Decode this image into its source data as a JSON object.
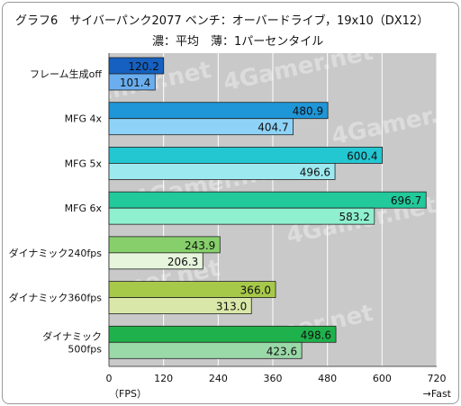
{
  "chart_data": {
    "type": "bar",
    "orientation": "horizontal",
    "title": "グラフ6　サイバーパンク2077 ベンチ：オーバードライブ，19x10（DX12）",
    "subtitle": "濃：平均　薄：1パーセンタイル",
    "xlabel": "（FPS）",
    "direction_label": "→Fast",
    "xlim": [
      0,
      720
    ],
    "xticks": [
      "0",
      "120",
      "240",
      "360",
      "480",
      "600",
      "720"
    ],
    "grid": true,
    "watermark": "4Gamer.net",
    "categories": [
      {
        "label": [
          "フレーム生成off"
        ],
        "average": 120.2,
        "average_label": "120.2",
        "percentile1": 101.4,
        "percentile1_label": "101.4",
        "color_dark": "#1560c0",
        "color_light": "#6aaef0"
      },
      {
        "label": [
          "MFG 4x"
        ],
        "average": 480.9,
        "average_label": "480.9",
        "percentile1": 404.7,
        "percentile1_label": "404.7",
        "color_dark": "#1f96d8",
        "color_light": "#8ed3f7"
      },
      {
        "label": [
          "MFG 5x"
        ],
        "average": 600.4,
        "average_label": "600.4",
        "percentile1": 496.6,
        "percentile1_label": "496.6",
        "color_dark": "#22c7d2",
        "color_light": "#9de9f0"
      },
      {
        "label": [
          "MFG 6x"
        ],
        "average": 696.7,
        "average_label": "696.7",
        "percentile1": 583.2,
        "percentile1_label": "583.2",
        "color_dark": "#22c99a",
        "color_light": "#8ff0cf"
      },
      {
        "label": [
          "ダイナミック240fps"
        ],
        "average": 243.9,
        "average_label": "243.9",
        "percentile1": 206.3,
        "percentile1_label": "206.3",
        "color_dark": "#86cf6a",
        "color_light": "#e6f5dc"
      },
      {
        "label": [
          "ダイナミック360fps"
        ],
        "average": 366.0,
        "average_label": "366.0",
        "percentile1": 313.0,
        "percentile1_label": "313.0",
        "color_dark": "#a7c94a",
        "color_light": "#d9e8a8"
      },
      {
        "label": [
          "ダイナミック",
          "500fps"
        ],
        "average": 498.6,
        "average_label": "498.6",
        "percentile1": 423.6,
        "percentile1_label": "423.6",
        "color_dark": "#1fb24c",
        "color_light": "#9ad9a8"
      }
    ]
  }
}
